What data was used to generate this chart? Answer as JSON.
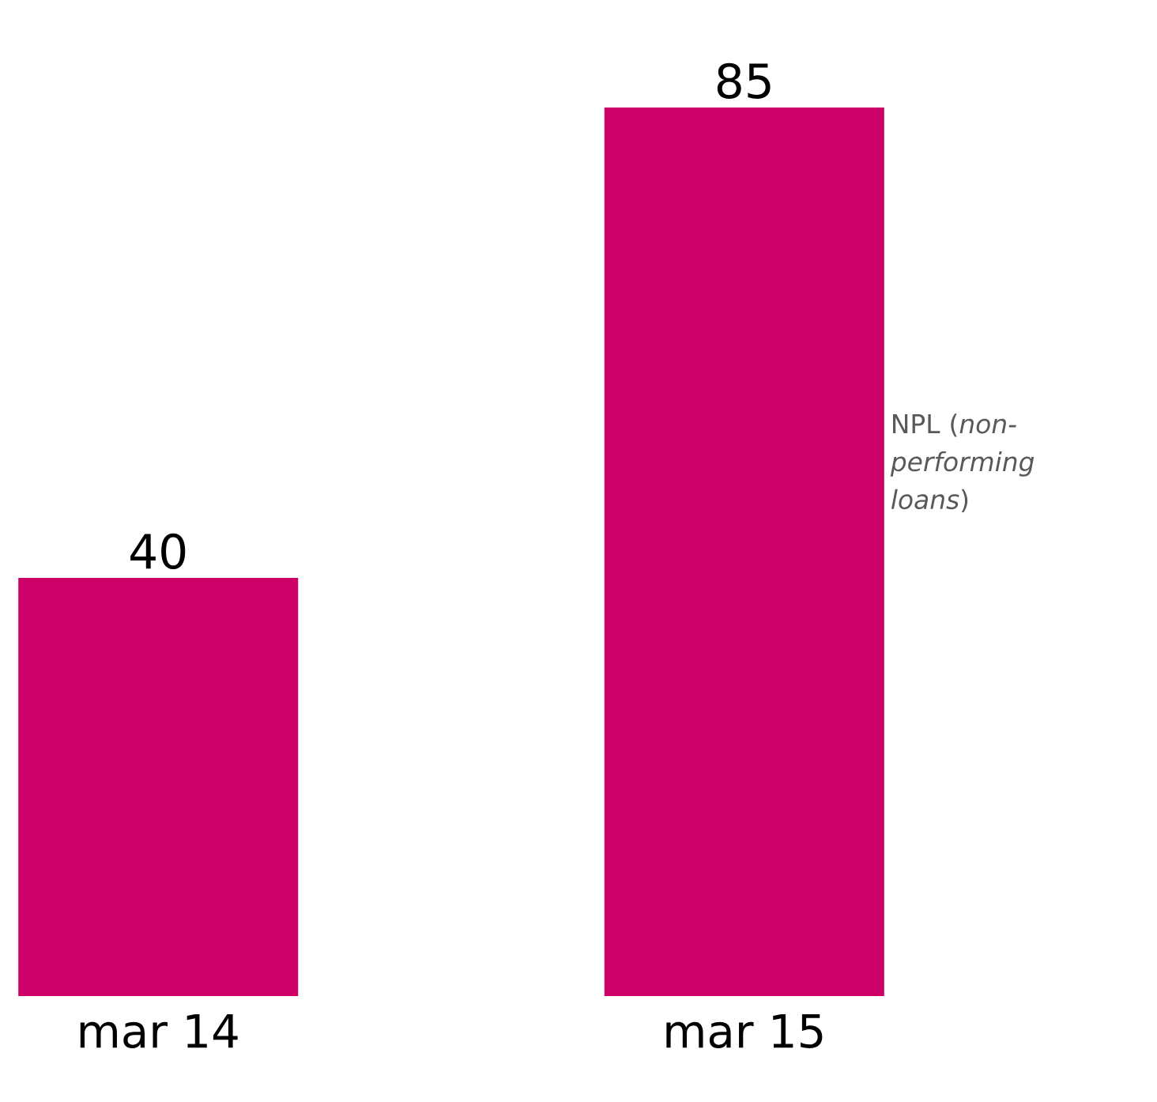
{
  "chart_data": {
    "type": "bar",
    "categories": [
      "mar 14",
      "mar 15"
    ],
    "series": [
      {
        "name": "NPL (*non-performing loans*)",
        "color": "#cc0066",
        "values": [
          40,
          85
        ]
      }
    ],
    "data_labels": true
  }
}
